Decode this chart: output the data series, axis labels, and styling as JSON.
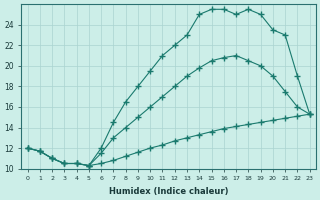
{
  "xlabel": "Humidex (Indice chaleur)",
  "background_color": "#cceee8",
  "line_color": "#1a7a6e",
  "xlim": [
    -0.5,
    23.5
  ],
  "ylim": [
    10,
    26
  ],
  "yticks": [
    10,
    12,
    14,
    16,
    18,
    20,
    22,
    24
  ],
  "xticks": [
    0,
    1,
    2,
    3,
    4,
    5,
    6,
    7,
    8,
    9,
    10,
    11,
    12,
    13,
    14,
    15,
    16,
    17,
    18,
    19,
    20,
    21,
    22,
    23
  ],
  "line1_x": [
    0,
    1,
    2,
    3,
    4,
    5,
    6,
    7,
    8,
    9,
    10,
    11,
    12,
    13,
    14,
    15,
    16,
    17,
    18,
    19,
    20,
    21,
    22,
    23
  ],
  "line1_y": [
    12,
    11.7,
    11.0,
    10.5,
    10.5,
    10.3,
    10.5,
    10.8,
    11.2,
    11.6,
    12.0,
    12.3,
    12.7,
    13.0,
    13.3,
    13.6,
    13.9,
    14.1,
    14.3,
    14.5,
    14.7,
    14.9,
    15.1,
    15.3
  ],
  "line2_x": [
    0,
    1,
    2,
    3,
    4,
    5,
    6,
    7,
    8,
    9,
    10,
    11,
    12,
    13,
    14,
    15,
    16,
    17,
    18,
    19,
    20,
    21,
    22,
    23
  ],
  "line2_y": [
    12,
    11.7,
    11.0,
    10.5,
    10.5,
    10.3,
    11.5,
    13.0,
    14.0,
    15.0,
    16.0,
    17.0,
    18.0,
    19.0,
    19.8,
    20.5,
    20.8,
    21.0,
    20.5,
    20.0,
    19.0,
    17.5,
    16.0,
    15.3
  ],
  "line3_x": [
    0,
    1,
    2,
    3,
    4,
    5,
    6,
    7,
    8,
    9,
    10,
    11,
    12,
    13,
    14,
    15,
    16,
    17,
    18,
    19,
    20,
    21,
    22,
    23
  ],
  "line3_y": [
    12,
    11.7,
    11.0,
    10.5,
    10.5,
    10.3,
    12.0,
    14.5,
    16.5,
    18.0,
    19.5,
    21.0,
    22.0,
    23.0,
    25.0,
    25.5,
    25.5,
    25.0,
    25.5,
    25.0,
    23.5,
    23.0,
    19.0,
    15.3
  ]
}
